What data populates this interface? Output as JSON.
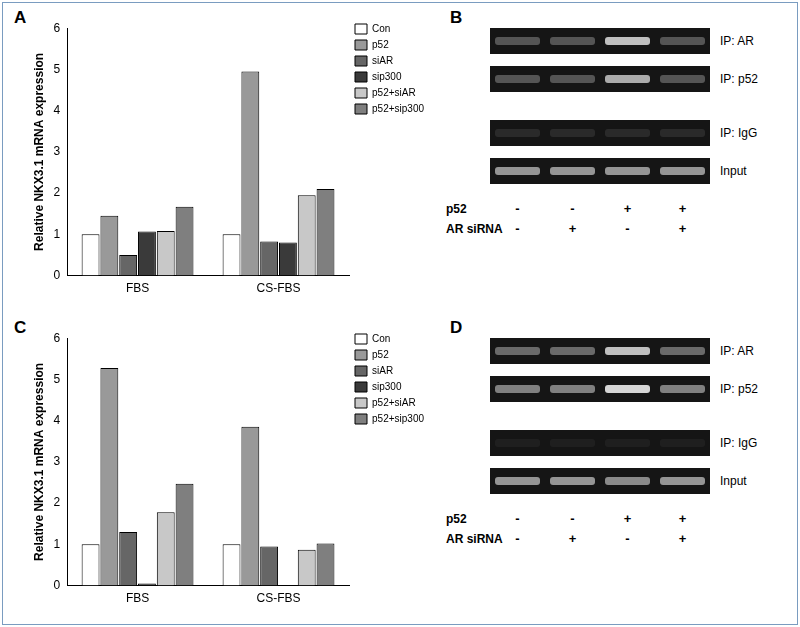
{
  "chart_data": [
    {
      "panel": "A",
      "type": "bar",
      "y_label": "Relative NKX3.1 mRNA expression",
      "categories": [
        "FBS",
        "CS-FBS"
      ],
      "series": [
        {
          "name": "Con",
          "color": "#ffffff",
          "values": [
            1,
            1
          ]
        },
        {
          "name": "p52",
          "color": "#999999",
          "values": [
            1.45,
            4.95
          ]
        },
        {
          "name": "siAR",
          "color": "#666666",
          "values": [
            0.5,
            0.83
          ]
        },
        {
          "name": "sip300",
          "color": "#3a3a3a",
          "values": [
            1.07,
            0.8
          ]
        },
        {
          "name": "p52+siAR",
          "color": "#c8c8c8",
          "values": [
            1.08,
            1.95
          ]
        },
        {
          "name": "p52+sip300",
          "color": "#7f7f7f",
          "values": [
            1.67,
            2.1
          ]
        }
      ],
      "ylim": [
        0,
        6
      ],
      "yticks": [
        0,
        1,
        2,
        3,
        4,
        5,
        6
      ],
      "grid": false,
      "legend": "right"
    },
    {
      "panel": "C",
      "type": "bar",
      "y_label": "Relative NKX3.1 mRNA expression",
      "categories": [
        "FBS",
        "CS-FBS"
      ],
      "series": [
        {
          "name": "Con",
          "color": "#ffffff",
          "values": [
            1,
            1
          ]
        },
        {
          "name": "p52",
          "color": "#999999",
          "values": [
            5.28,
            3.85
          ]
        },
        {
          "name": "siAR",
          "color": "#666666",
          "values": [
            1.3,
            0.95
          ]
        },
        {
          "name": "sip300",
          "color": "#3a3a3a",
          "values": [
            0.05,
            0
          ]
        },
        {
          "name": "p52+siAR",
          "color": "#c8c8c8",
          "values": [
            1.78,
            0.87
          ]
        },
        {
          "name": "p52+sip300",
          "color": "#7f7f7f",
          "values": [
            2.47,
            1.02
          ]
        }
      ],
      "ylim": [
        0,
        6
      ],
      "yticks": [
        0,
        1,
        2,
        3,
        4,
        5,
        6
      ],
      "grid": false,
      "legend": "right"
    }
  ],
  "gels": [
    {
      "panel": "B",
      "rows": [
        {
          "label": "IP: AR",
          "bands": [
            0.3,
            0.3,
            0.8,
            0.3
          ]
        },
        {
          "label": "IP: p52",
          "bands": [
            0.3,
            0.3,
            0.7,
            0.3
          ]
        },
        {
          "label": "IP: IgG",
          "bands": [
            0.1,
            0.1,
            0.1,
            0.1
          ]
        },
        {
          "label": "Input",
          "bands": [
            0.6,
            0.6,
            0.6,
            0.6
          ]
        }
      ],
      "conditions": [
        {
          "label": "p52",
          "marks": [
            "-",
            "-",
            "+",
            "+"
          ]
        },
        {
          "label": "AR siRNA",
          "marks": [
            "-",
            "+",
            "-",
            "+"
          ]
        }
      ]
    },
    {
      "panel": "D",
      "rows": [
        {
          "label": "IP: AR",
          "bands": [
            0.4,
            0.4,
            0.8,
            0.4
          ]
        },
        {
          "label": "IP: p52",
          "bands": [
            0.5,
            0.5,
            0.9,
            0.5
          ]
        },
        {
          "label": "IP: IgG",
          "bands": [
            0.05,
            0.05,
            0.05,
            0.05
          ]
        },
        {
          "label": "Input",
          "bands": [
            0.6,
            0.6,
            0.55,
            0.6
          ]
        }
      ],
      "conditions": [
        {
          "label": "p52",
          "marks": [
            "-",
            "-",
            "+",
            "+"
          ]
        },
        {
          "label": "AR siRNA",
          "marks": [
            "-",
            "+",
            "-",
            "+"
          ]
        }
      ]
    }
  ]
}
